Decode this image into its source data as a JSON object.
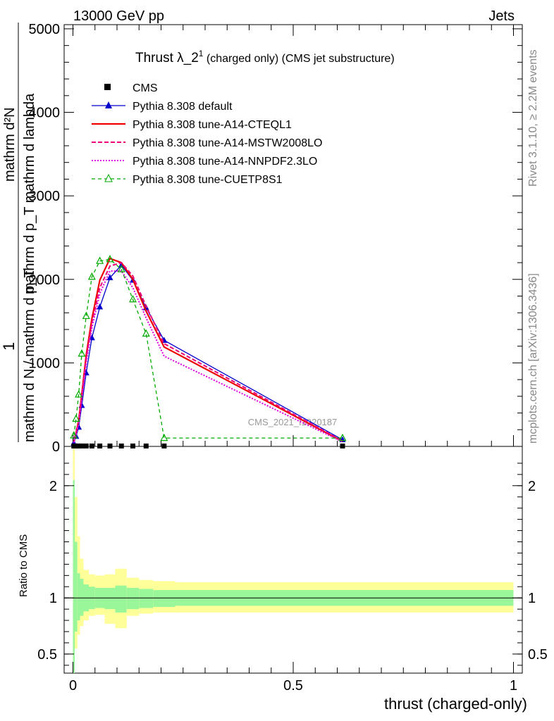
{
  "header": {
    "left": "13000 GeV pp",
    "right": "Jets"
  },
  "title": {
    "main": "Thrust λ_2",
    "sup": "1",
    "rest": " (charged only) (CMS jet substructure)"
  },
  "side_text": {
    "rivet": "Rivet 3.1.10, ≥ 2.2M events",
    "mcplots": "mcplots.cern.ch [arXiv:1306.3436]"
  },
  "watermark": "CMS_2021_I1920187",
  "ylabel_top": {
    "num": "1",
    "den": "mathrm d N / mathrm d p_T",
    "den_sub": "T",
    "left_num": "mathrm d²N",
    "left_den": "mathrm d p_T mathrm d lambda",
    "left_den_sub": "T"
  },
  "ylabel_ratio": "Ratio to CMS",
  "xlabel": "thrust (charged-only)",
  "colors": {
    "cms": "#000000",
    "default": "#0000cc",
    "cteql1": "#ee0000",
    "mstw": "#ee0077",
    "nnpdf": "#dd00dd",
    "cuetp8s1": "#00aa00",
    "band_inner": "#99f799",
    "band_outer": "#ffff99"
  },
  "chart_data": {
    "type": "line",
    "x_range": [
      -0.02,
      1.02
    ],
    "main": {
      "ylim": [
        0,
        5050
      ],
      "yticks": [
        0,
        1000,
        2000,
        3000,
        4000,
        5000
      ],
      "ytick_labels": [
        "0",
        "1000",
        "2000",
        "3000",
        "4000",
        "5000"
      ]
    },
    "ratio": {
      "ylim": [
        0.33,
        2.35
      ],
      "yticks": [
        0.5,
        1,
        2
      ],
      "ytick_labels": [
        "0.5",
        "1",
        "2"
      ]
    },
    "xticks": [
      0,
      0.5,
      1
    ],
    "xtick_labels": [
      "0",
      "0.5",
      "1"
    ],
    "legend": [
      {
        "key": "cms",
        "label": "CMS"
      },
      {
        "key": "default",
        "label": "Pythia 8.308 default"
      },
      {
        "key": "cteql1",
        "label": "Pythia 8.308 tune-A14-CTEQL1"
      },
      {
        "key": "mstw",
        "label": "Pythia 8.308 tune-A14-MSTW2008LO"
      },
      {
        "key": "nnpdf",
        "label": "Pythia 8.308 tune-A14-NNPDF2.3LO"
      },
      {
        "key": "cuetp8s1",
        "label": "Pythia 8.308 tune-CUETP8S1"
      }
    ],
    "cms": {
      "x": [
        0.002,
        0.007,
        0.013,
        0.02,
        0.03,
        0.043,
        0.061,
        0.084,
        0.11,
        0.136,
        0.166,
        0.207,
        0.612
      ],
      "y": [
        5,
        5,
        5,
        5,
        5,
        5,
        5,
        5,
        5,
        5,
        5,
        5,
        5
      ]
    },
    "series": [
      {
        "key": "default",
        "name": "Pythia 8.308 default",
        "x": [
          0.002,
          0.007,
          0.013,
          0.02,
          0.03,
          0.043,
          0.061,
          0.084,
          0.11,
          0.136,
          0.166,
          0.207,
          0.612
        ],
        "y": [
          40,
          120,
          230,
          490,
          880,
          1300,
          1670,
          2020,
          2170,
          1990,
          1660,
          1270,
          80
        ]
      },
      {
        "key": "cteql1",
        "name": "Pythia 8.308 tune-A14-CTEQL1",
        "x": [
          0.002,
          0.007,
          0.013,
          0.02,
          0.03,
          0.043,
          0.061,
          0.084,
          0.11,
          0.136,
          0.166,
          0.207,
          0.612
        ],
        "y": [
          55,
          160,
          310,
          620,
          1090,
          1530,
          1990,
          2250,
          2200,
          2000,
          1620,
          1190,
          60
        ]
      },
      {
        "key": "mstw",
        "name": "Pythia 8.308 tune-A14-MSTW2008LO",
        "x": [
          0.002,
          0.007,
          0.013,
          0.02,
          0.03,
          0.043,
          0.061,
          0.084,
          0.11,
          0.136,
          0.166,
          0.207,
          0.612
        ],
        "y": [
          50,
          150,
          290,
          590,
          1050,
          1480,
          1900,
          2160,
          2200,
          2040,
          1680,
          1230,
          65
        ]
      },
      {
        "key": "nnpdf",
        "name": "Pythia 8.308 tune-A14-NNPDF2.3LO",
        "x": [
          0.002,
          0.007,
          0.013,
          0.02,
          0.03,
          0.043,
          0.061,
          0.084,
          0.11,
          0.136,
          0.166,
          0.207,
          0.612
        ],
        "y": [
          45,
          140,
          270,
          560,
          1000,
          1420,
          1830,
          2100,
          2100,
          1900,
          1540,
          1080,
          55
        ]
      },
      {
        "key": "cuetp8s1",
        "name": "Pythia 8.308 tune-CUETP8S1",
        "x": [
          0.002,
          0.007,
          0.013,
          0.02,
          0.03,
          0.043,
          0.061,
          0.084,
          0.11,
          0.136,
          0.166,
          0.207,
          0.612
        ],
        "y": [
          130,
          330,
          620,
          1110,
          1560,
          2030,
          2220,
          2240,
          2120,
          1760,
          1350,
          100,
          100
        ]
      }
    ],
    "ratio_band": {
      "edges": [
        0.0,
        0.004,
        0.01,
        0.016,
        0.024,
        0.036,
        0.05,
        0.072,
        0.096,
        0.122,
        0.15,
        0.182,
        0.232,
        1.0
      ],
      "inner": [
        [
          0.3,
          2.05
        ],
        [
          0.7,
          1.5
        ],
        [
          0.8,
          1.22
        ],
        [
          0.84,
          1.17
        ],
        [
          0.88,
          1.12
        ],
        [
          0.9,
          1.1
        ],
        [
          0.91,
          1.09
        ],
        [
          0.9,
          1.09
        ],
        [
          0.87,
          1.11
        ],
        [
          0.9,
          1.09
        ],
        [
          0.91,
          1.08
        ],
        [
          0.92,
          1.07
        ],
        [
          0.93,
          1.07
        ]
      ],
      "outer": [
        [
          0.2,
          2.35
        ],
        [
          0.55,
          1.9
        ],
        [
          0.67,
          1.55
        ],
        [
          0.75,
          1.35
        ],
        [
          0.8,
          1.25
        ],
        [
          0.84,
          1.21
        ],
        [
          0.85,
          1.2
        ],
        [
          0.77,
          1.21
        ],
        [
          0.73,
          1.26
        ],
        [
          0.84,
          1.18
        ],
        [
          0.86,
          1.16
        ],
        [
          0.87,
          1.15
        ],
        [
          0.87,
          1.14
        ]
      ]
    }
  }
}
